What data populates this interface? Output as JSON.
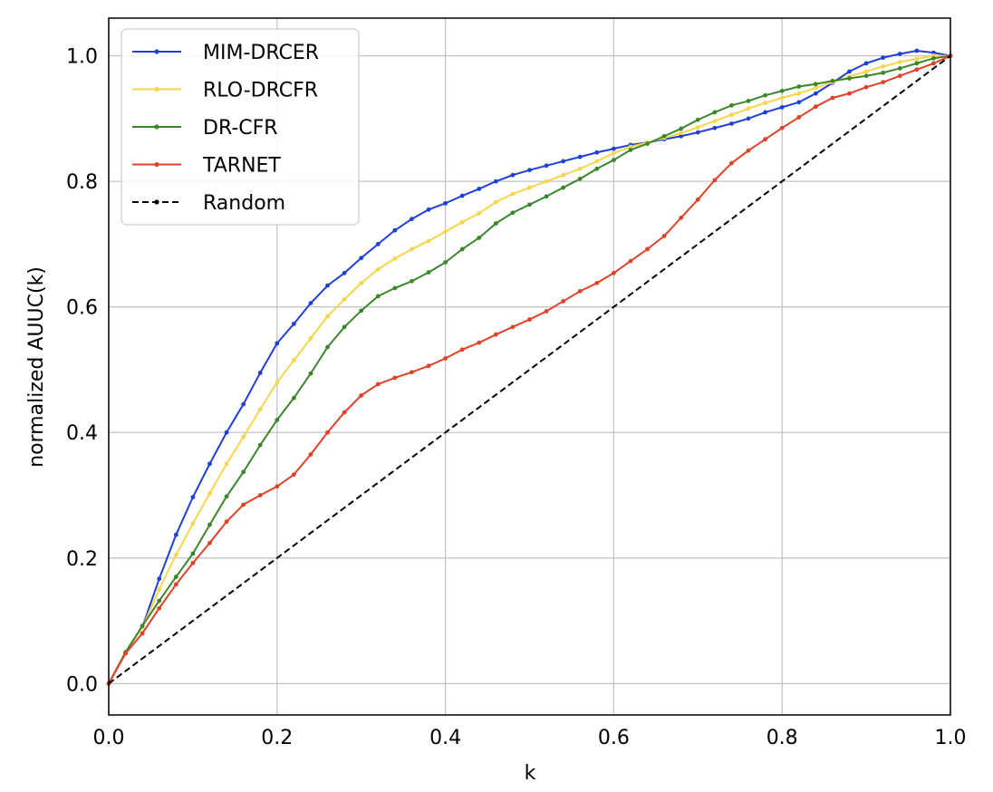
{
  "chart_data": {
    "type": "line",
    "title": "",
    "xlabel": "k",
    "ylabel": "normalized AUUC(k)",
    "xlim": [
      0.0,
      1.0
    ],
    "ylim": [
      -0.05,
      1.06
    ],
    "x_ticks": [
      0.0,
      0.2,
      0.4,
      0.6,
      0.8,
      1.0
    ],
    "x_tick_labels": [
      "0.0",
      "0.2",
      "0.4",
      "0.6",
      "0.8",
      "1.0"
    ],
    "y_ticks": [
      0.0,
      0.2,
      0.4,
      0.6,
      0.8,
      1.0
    ],
    "y_tick_labels": [
      "0.0",
      "0.2",
      "0.4",
      "0.6",
      "0.8",
      "1.0"
    ],
    "grid": true,
    "legend_position": "top-left",
    "x": [
      0.0,
      0.02,
      0.04,
      0.06,
      0.08,
      0.1,
      0.12,
      0.14,
      0.16,
      0.18,
      0.2,
      0.22,
      0.24,
      0.26,
      0.28,
      0.3,
      0.32,
      0.34,
      0.36,
      0.38,
      0.4,
      0.42,
      0.44,
      0.46,
      0.48,
      0.5,
      0.52,
      0.54,
      0.56,
      0.58,
      0.6,
      0.62,
      0.64,
      0.66,
      0.68,
      0.7,
      0.72,
      0.74,
      0.76,
      0.78,
      0.8,
      0.82,
      0.84,
      0.86,
      0.88,
      0.9,
      0.92,
      0.94,
      0.96,
      0.98,
      1.0
    ],
    "series": [
      {
        "name": "MIM-DRCER",
        "color": "#1f3fd6",
        "dashed": false,
        "values": [
          0.0,
          0.05,
          0.09,
          0.167,
          0.237,
          0.297,
          0.35,
          0.4,
          0.445,
          0.495,
          0.542,
          0.573,
          0.606,
          0.634,
          0.654,
          0.678,
          0.7,
          0.722,
          0.74,
          0.755,
          0.765,
          0.777,
          0.788,
          0.8,
          0.81,
          0.818,
          0.825,
          0.832,
          0.839,
          0.846,
          0.852,
          0.858,
          0.862,
          0.867,
          0.872,
          0.878,
          0.885,
          0.892,
          0.9,
          0.91,
          0.918,
          0.926,
          0.94,
          0.957,
          0.975,
          0.988,
          0.997,
          1.003,
          1.008,
          1.005,
          1.0
        ]
      },
      {
        "name": "RLO-DRCFR",
        "color": "#f6d64c",
        "dashed": false,
        "values": [
          0.0,
          0.05,
          0.09,
          0.15,
          0.205,
          0.255,
          0.303,
          0.35,
          0.393,
          0.437,
          0.48,
          0.515,
          0.55,
          0.585,
          0.612,
          0.638,
          0.66,
          0.677,
          0.692,
          0.705,
          0.72,
          0.735,
          0.749,
          0.767,
          0.78,
          0.79,
          0.8,
          0.81,
          0.82,
          0.832,
          0.845,
          0.855,
          0.862,
          0.869,
          0.877,
          0.886,
          0.896,
          0.906,
          0.916,
          0.925,
          0.933,
          0.94,
          0.949,
          0.958,
          0.967,
          0.975,
          0.983,
          0.99,
          0.995,
          1.0,
          1.0
        ]
      },
      {
        "name": "DR-CFR",
        "color": "#3b862c",
        "dashed": false,
        "values": [
          0.0,
          0.05,
          0.092,
          0.132,
          0.17,
          0.207,
          0.253,
          0.298,
          0.337,
          0.38,
          0.42,
          0.455,
          0.494,
          0.536,
          0.568,
          0.594,
          0.617,
          0.63,
          0.641,
          0.655,
          0.671,
          0.692,
          0.71,
          0.733,
          0.75,
          0.763,
          0.776,
          0.79,
          0.804,
          0.82,
          0.834,
          0.85,
          0.86,
          0.872,
          0.884,
          0.898,
          0.91,
          0.921,
          0.928,
          0.937,
          0.944,
          0.951,
          0.955,
          0.96,
          0.964,
          0.968,
          0.973,
          0.98,
          0.988,
          0.996,
          1.0
        ]
      },
      {
        "name": "TARNET",
        "color": "#df4228",
        "dashed": false,
        "values": [
          0.0,
          0.048,
          0.08,
          0.12,
          0.158,
          0.192,
          0.224,
          0.258,
          0.285,
          0.3,
          0.314,
          0.333,
          0.365,
          0.4,
          0.432,
          0.459,
          0.477,
          0.487,
          0.496,
          0.506,
          0.518,
          0.532,
          0.543,
          0.556,
          0.568,
          0.58,
          0.593,
          0.609,
          0.625,
          0.638,
          0.654,
          0.673,
          0.692,
          0.713,
          0.742,
          0.771,
          0.802,
          0.829,
          0.849,
          0.867,
          0.885,
          0.902,
          0.919,
          0.933,
          0.94,
          0.95,
          0.958,
          0.968,
          0.978,
          0.988,
          1.0
        ]
      },
      {
        "name": "Random",
        "color": "#000000",
        "dashed": true,
        "values": [
          0.0,
          0.02,
          0.04,
          0.06,
          0.08,
          0.1,
          0.12,
          0.14,
          0.16,
          0.18,
          0.2,
          0.22,
          0.24,
          0.26,
          0.28,
          0.3,
          0.32,
          0.34,
          0.36,
          0.38,
          0.4,
          0.42,
          0.44,
          0.46,
          0.48,
          0.5,
          0.52,
          0.54,
          0.56,
          0.58,
          0.6,
          0.62,
          0.64,
          0.66,
          0.68,
          0.7,
          0.72,
          0.74,
          0.76,
          0.78,
          0.8,
          0.82,
          0.84,
          0.86,
          0.88,
          0.9,
          0.92,
          0.94,
          0.96,
          0.98,
          1.0
        ]
      }
    ]
  }
}
